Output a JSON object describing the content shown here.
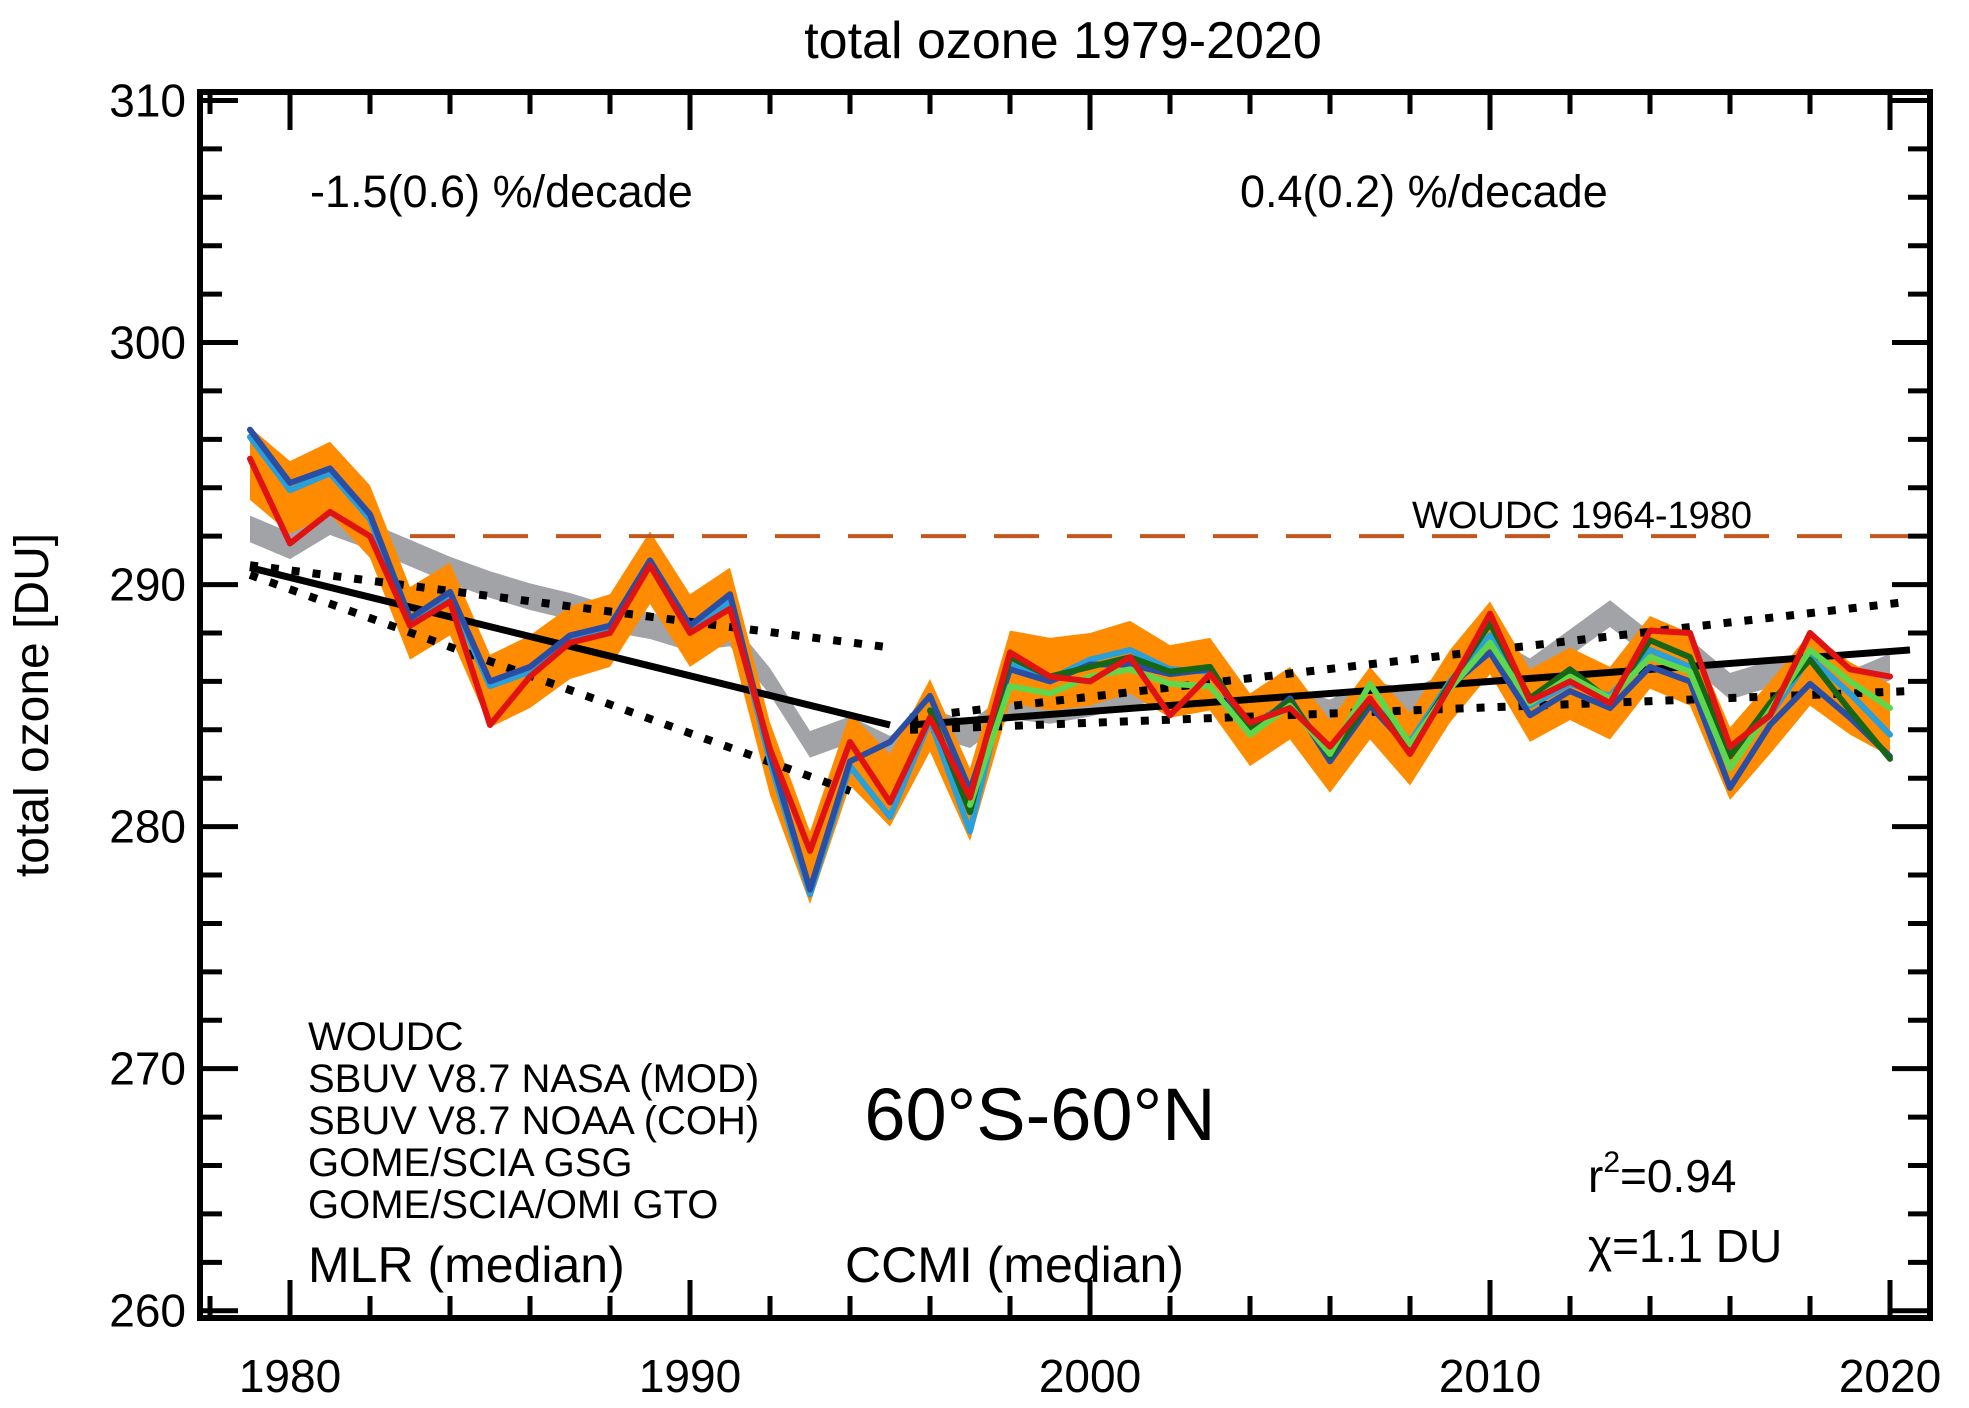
{
  "title": "total ozone 1979-2020",
  "axes": {
    "y_label": "total ozone [DU]"
  },
  "annotations": {
    "trend1": "-1.5(0.6) %/decade",
    "trend2": "0.4(0.2) %/decade",
    "region": "60°S-60°N",
    "reference": "WOUDC 1964-1980"
  },
  "stats": {
    "r_base": "r",
    "r_sup": "2",
    "r_rest": "=0.94",
    "chi": "χ=1.1 DU"
  },
  "legend": [
    {
      "label": "WOUDC",
      "color": "#e01212",
      "size": "normal"
    },
    {
      "label": "SBUV V8.7 NASA (MOD)",
      "color": "#2b4ea5",
      "size": "normal"
    },
    {
      "label": "SBUV V8.7 NOAA (COH)",
      "color": "#2b9fd8",
      "size": "normal"
    },
    {
      "label": "GOME/SCIA GSG",
      "color": "#156615",
      "size": "normal"
    },
    {
      "label": "GOME/SCIA/OMI GTO",
      "color": "#5fd74d",
      "size": "normal"
    },
    {
      "label": "MLR (median)",
      "color": "#ff8c00",
      "size": "large"
    },
    {
      "label": "CCMI (median)",
      "color": "#9b9ca0",
      "size": "large"
    }
  ],
  "chart_data": {
    "type": "line",
    "title": "total ozone 1979-2020",
    "xlabel": "",
    "ylabel": "total ozone [DU]",
    "x_range": [
      1977.75,
      2021.0
    ],
    "y_range": [
      259.7,
      310.35
    ],
    "x_major_ticks": [
      1980,
      1990,
      2000,
      2010,
      2020
    ],
    "x_minor_step": 2,
    "y_major_ticks": [
      260,
      270,
      280,
      290,
      300,
      310
    ],
    "y_minor_step": 2,
    "grid": false,
    "years": [
      1979,
      1980,
      1981,
      1982,
      1983,
      1984,
      1985,
      1986,
      1987,
      1988,
      1989,
      1990,
      1991,
      1992,
      1993,
      1994,
      1995,
      1996,
      1997,
      1998,
      1999,
      2000,
      2001,
      2002,
      2003,
      2004,
      2005,
      2006,
      2007,
      2008,
      2009,
      2010,
      2011,
      2012,
      2013,
      2014,
      2015,
      2016,
      2017,
      2018,
      2019,
      2020
    ],
    "bands": [
      {
        "name": "CCMI (median)",
        "color": "#a2a3a7",
        "half_width": 0.55,
        "center": [
          292.3,
          291.6,
          292.6,
          292.0,
          291.3,
          290.6,
          290.0,
          289.5,
          289.1,
          288.6,
          288.3,
          287.8,
          288.0,
          286.0,
          283.4,
          284.0,
          283.2,
          284.3,
          283.8,
          285.0,
          284.8,
          285.1,
          285.5,
          285.9,
          286.0,
          284.6,
          285.1,
          284.7,
          285.5,
          285.1,
          285.9,
          287.3,
          286.4,
          287.6,
          288.8,
          287.5,
          287.2,
          285.8,
          286.3,
          286.6,
          285.9,
          286.6
        ]
      },
      {
        "name": "MLR (median)",
        "color": "#ff8c00",
        "half_width": 1.5,
        "center": [
          295.0,
          293.6,
          294.4,
          292.6,
          288.4,
          289.4,
          285.6,
          286.4,
          287.6,
          288.1,
          290.7,
          288.1,
          289.2,
          282.8,
          278.3,
          283.2,
          281.5,
          284.6,
          280.9,
          286.6,
          286.3,
          286.5,
          287.0,
          286.0,
          286.3,
          284.0,
          285.1,
          282.9,
          285.1,
          283.2,
          285.8,
          287.8,
          285.0,
          285.9,
          285.1,
          287.2,
          286.5,
          282.6,
          284.5,
          286.5,
          285.3,
          284.4
        ]
      }
    ],
    "series": [
      {
        "name": "SBUV V8.7 NOAA (COH)",
        "color": "#2b9fd8",
        "start_year": 1979,
        "values": [
          296.1,
          293.9,
          294.6,
          292.7,
          288.4,
          289.5,
          285.8,
          286.4,
          287.7,
          288.1,
          290.8,
          288.1,
          289.3,
          282.7,
          277.2,
          282.5,
          280.4,
          284.4,
          279.8,
          286.7,
          286.1,
          286.9,
          287.3,
          286.5,
          286.4,
          284.1,
          285.2,
          283.0,
          285.2,
          283.5,
          286.0,
          287.9,
          285.0,
          285.9,
          285.4,
          287.3,
          286.6,
          283.1,
          284.6,
          287.0,
          285.5,
          283.8
        ]
      },
      {
        "name": "SBUV V8.7 NASA (MOD)",
        "color": "#2b4ea5",
        "start_year": 1979,
        "values": [
          296.4,
          294.2,
          294.8,
          292.9,
          288.6,
          289.7,
          286.0,
          286.6,
          287.9,
          288.3,
          291.0,
          288.3,
          289.6,
          283.0,
          277.4,
          282.7,
          283.5,
          285.4,
          281.5,
          286.5,
          286.0,
          286.7,
          286.7,
          286.3,
          286.5,
          283.9,
          285.3,
          282.7,
          285.0,
          283.2,
          285.8,
          287.2,
          284.6,
          285.6,
          284.9,
          286.6,
          286.0,
          281.6,
          284.2,
          285.9,
          284.5,
          282.9
        ]
      },
      {
        "name": "GOME/SCIA GSG",
        "color": "#156615",
        "start_year": 1996,
        "values": [
          284.8,
          280.6,
          287.0,
          286.2,
          286.6,
          287.0,
          286.4,
          286.6,
          284.0,
          285.2,
          282.9,
          285.2,
          283.3,
          285.9,
          288.4,
          285.3,
          286.5,
          285.2,
          287.7,
          287.0,
          282.9,
          285.1,
          286.9,
          284.8,
          282.8
        ]
      },
      {
        "name": "GOME/SCIA/OMI GTO",
        "color": "#5fd74d",
        "start_year": 1997,
        "values": [
          280.9,
          285.8,
          285.5,
          286.2,
          286.5,
          285.9,
          285.8,
          283.8,
          285.0,
          283.0,
          285.9,
          283.4,
          285.7,
          287.6,
          285.1,
          286.2,
          285.3,
          287.0,
          286.4,
          282.4,
          284.8,
          287.3,
          286.0,
          284.9
        ]
      },
      {
        "name": "WOUDC",
        "color": "#e01212",
        "start_year": 1979,
        "values": [
          295.2,
          291.7,
          293.0,
          292.0,
          288.3,
          289.3,
          284.2,
          286.2,
          287.6,
          288.0,
          290.8,
          288.0,
          289.0,
          283.2,
          279.0,
          283.5,
          281.0,
          284.5,
          281.2,
          287.2,
          286.2,
          286.0,
          287.0,
          284.6,
          286.3,
          284.3,
          284.9,
          283.3,
          285.3,
          283.0,
          285.8,
          288.8,
          285.2,
          286.0,
          285.1,
          288.1,
          288.0,
          283.3,
          284.6,
          288.0,
          286.5,
          286.2
        ]
      }
    ],
    "reference_line": {
      "label": "WOUDC 1964-1980",
      "value": 292,
      "color": "#c2571e",
      "x_start": 1983,
      "x_end": 2021
    },
    "trend_lines": [
      {
        "style": "solid",
        "points": [
          [
            1979,
            290.7
          ],
          [
            1995,
            284.2
          ]
        ]
      },
      {
        "style": "dotted",
        "points": [
          [
            1979,
            290.8
          ],
          [
            1995,
            287.4
          ]
        ]
      },
      {
        "style": "dotted",
        "points": [
          [
            1979,
            290.4
          ],
          [
            1994.3,
            281.3
          ]
        ]
      },
      {
        "style": "solid",
        "points": [
          [
            1995.5,
            284.2
          ],
          [
            2020.5,
            287.3
          ]
        ]
      },
      {
        "style": "dotted",
        "points": [
          [
            1995.5,
            284.5
          ],
          [
            2020.5,
            289.3
          ]
        ]
      },
      {
        "style": "dotted",
        "points": [
          [
            1995.5,
            284.0
          ],
          [
            2020.5,
            285.6
          ]
        ]
      }
    ],
    "legend_position": "bottom-left"
  }
}
